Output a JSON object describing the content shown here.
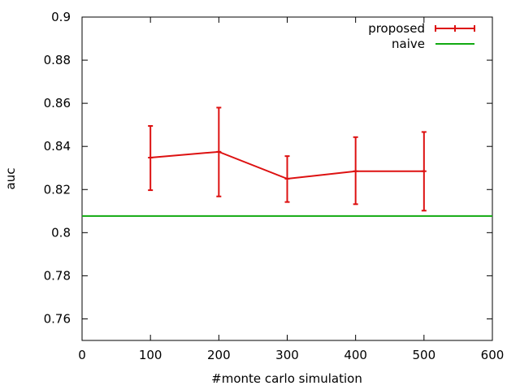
{
  "chart_data": {
    "type": "line",
    "title": "",
    "xlabel": "#monte carlo simulation",
    "ylabel": "auc",
    "xlim": [
      0,
      600
    ],
    "ylim": [
      0.75,
      0.9
    ],
    "x_ticks": [
      0,
      100,
      200,
      300,
      400,
      500,
      600
    ],
    "x_tick_labels": [
      "0",
      "100",
      "200",
      "300",
      "400",
      "500",
      "600"
    ],
    "y_ticks": [
      0.76,
      0.78,
      0.8,
      0.82,
      0.84,
      0.86,
      0.88,
      0.9
    ],
    "y_tick_labels": [
      "0.76",
      "0.78",
      "0.8",
      "0.82",
      "0.84",
      "0.86",
      "0.88",
      "0.9"
    ],
    "grid": false,
    "legend_position": "top-right",
    "series": [
      {
        "name": "proposed",
        "color": "#dd1111",
        "style": "line-with-errorbars",
        "x": [
          100,
          200,
          300,
          400,
          500
        ],
        "y": [
          0.8348,
          0.8375,
          0.825,
          0.8285,
          0.8285
        ],
        "err_low": [
          0.8197,
          0.8168,
          0.8142,
          0.8132,
          0.8102
        ],
        "err_high": [
          0.8495,
          0.858,
          0.8355,
          0.8443,
          0.8467
        ]
      },
      {
        "name": "naive",
        "color": "#11aa11",
        "style": "horizontal-line",
        "y": 0.8077
      }
    ]
  }
}
